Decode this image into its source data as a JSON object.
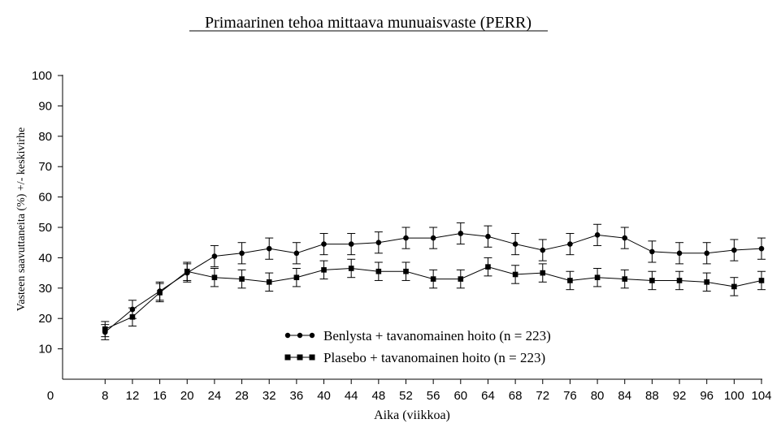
{
  "chart_data": {
    "type": "line",
    "title": "Primaarinen tehoa mittaava munuaisvaste (PERR)",
    "xlabel": "Aika (viikkoa)",
    "ylabel": "Vasteen saavuttaneita (%) +/- keskivirhe",
    "xlim": [
      0,
      104
    ],
    "ylim": [
      0,
      100
    ],
    "x_ticks": [
      0,
      8,
      12,
      16,
      20,
      24,
      28,
      32,
      36,
      40,
      44,
      48,
      52,
      56,
      60,
      64,
      68,
      72,
      76,
      80,
      84,
      88,
      92,
      96,
      100,
      104
    ],
    "y_ticks": [
      10,
      20,
      30,
      40,
      50,
      60,
      70,
      80,
      90,
      100
    ],
    "x": [
      8,
      12,
      16,
      20,
      24,
      28,
      32,
      36,
      40,
      44,
      48,
      52,
      56,
      60,
      64,
      68,
      72,
      76,
      80,
      84,
      88,
      92,
      96,
      100,
      104
    ],
    "series": [
      {
        "name": "Benlysta + tavanomainen hoito (n = 223)",
        "marker": "circle",
        "values": [
          15.5,
          23,
          29,
          35,
          40.5,
          41.5,
          43,
          41.5,
          44.5,
          44.5,
          45,
          46.5,
          46.5,
          48,
          47,
          44.5,
          42.5,
          44.5,
          47.5,
          46.5,
          42,
          41.5,
          41.5,
          42.5,
          43
        ],
        "error": [
          2.5,
          3,
          3,
          3,
          3.5,
          3.5,
          3.5,
          3.5,
          3.5,
          3.5,
          3.5,
          3.5,
          3.5,
          3.5,
          3.5,
          3.5,
          3.5,
          3.5,
          3.5,
          3.5,
          3.5,
          3.5,
          3.5,
          3.5,
          3.5
        ]
      },
      {
        "name": "Plasebo + tavanomainen hoito (n = 223)",
        "marker": "square",
        "values": [
          16.5,
          20.5,
          28.5,
          35.5,
          33.5,
          33,
          32,
          33.5,
          36,
          36.5,
          35.5,
          35.5,
          33,
          33,
          37,
          34.5,
          35,
          32.5,
          33.5,
          33,
          32.5,
          32.5,
          32,
          30.5,
          32.5
        ],
        "error": [
          2.5,
          3,
          3,
          3,
          3,
          3,
          3,
          3,
          3,
          3,
          3,
          3,
          3,
          3,
          3,
          3,
          3,
          3,
          3,
          3,
          3,
          3,
          3,
          3,
          3
        ]
      }
    ],
    "legend_position": "bottom-center"
  }
}
